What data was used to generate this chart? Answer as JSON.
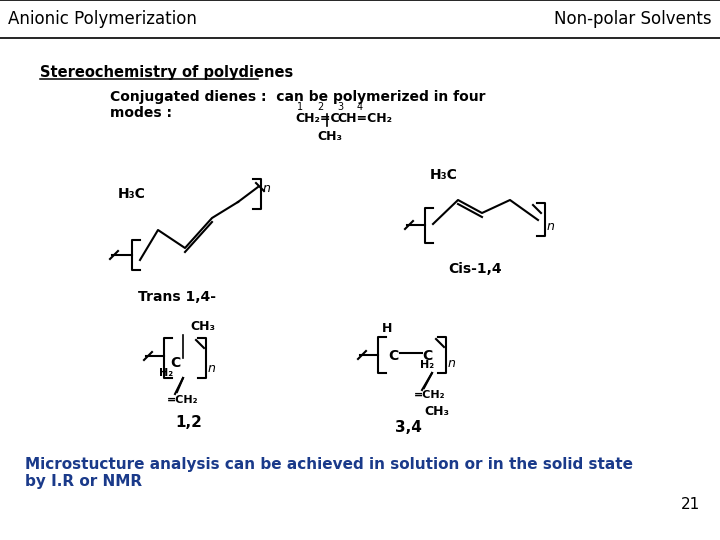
{
  "header_left": "Anionic Polymerization",
  "header_right": "Non-polar Solvents",
  "title": "Stereochemistry of polydienes",
  "subtitle_line1": "Conjugated dienes :  can be polymerized in four",
  "subtitle_line2": "modes :",
  "footer_line1": "Microstucture analysis can be achieved in solution or in the solid state",
  "footer_line2": "by I.R or NMR",
  "page_number": "21",
  "bg_color": "#ffffff",
  "header_text_color": "#000000",
  "title_color": "#000000",
  "footer_color": "#1a3a8a",
  "text_color": "#000000",
  "label_trans": "Trans 1,4-",
  "label_cis": "Cis-1,4",
  "label_12": "1,2",
  "label_34": "3,4"
}
